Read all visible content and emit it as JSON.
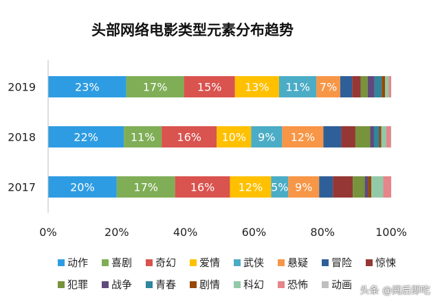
{
  "watermark": "头条 @阅后即吃",
  "chart_data": {
    "type": "bar",
    "orientation": "horizontal",
    "stacked": true,
    "title": "头部网络电影类型元素分布趋势",
    "categories": [
      "2019",
      "2018",
      "2017"
    ],
    "xlim": [
      0,
      100
    ],
    "xticks": [
      "0%",
      "20%",
      "40%",
      "60%",
      "80%",
      "100%"
    ],
    "legend_position": "bottom",
    "series": [
      {
        "name": "动作",
        "color": "#2E9CE2",
        "values": [
          23,
          22,
          20
        ],
        "labels": [
          "23%",
          "22%",
          "20%"
        ]
      },
      {
        "name": "喜剧",
        "color": "#7FAE56",
        "values": [
          17,
          11,
          17
        ],
        "labels": [
          "17%",
          "11%",
          "17%"
        ]
      },
      {
        "name": "奇幻",
        "color": "#D9534F",
        "values": [
          15,
          16,
          16
        ],
        "labels": [
          "15%",
          "16%",
          "16%"
        ]
      },
      {
        "name": "爱情",
        "color": "#FFC000",
        "values": [
          13,
          10,
          12
        ],
        "labels": [
          "13%",
          "10%",
          "12%"
        ]
      },
      {
        "name": "武侠",
        "color": "#4BACC6",
        "values": [
          11,
          9,
          5
        ],
        "labels": [
          "11%",
          "9%",
          "5%"
        ]
      },
      {
        "name": "悬疑",
        "color": "#F79646",
        "values": [
          7,
          12,
          9
        ],
        "labels": [
          "7%",
          "12%",
          "9%"
        ]
      },
      {
        "name": "冒险",
        "color": "#2F5F98",
        "values": [
          3.5,
          5.2,
          4
        ]
      },
      {
        "name": "惊悚",
        "color": "#953735",
        "values": [
          2.5,
          4.1,
          5.8
        ]
      },
      {
        "name": "犯罪",
        "color": "#77933C",
        "values": [
          2.1,
          4.3,
          3.5
        ]
      },
      {
        "name": "战争",
        "color": "#604A7B",
        "values": [
          2,
          1.1,
          1
        ]
      },
      {
        "name": "青春",
        "color": "#31859C",
        "values": [
          2.1,
          1.5,
          0
        ]
      },
      {
        "name": "剧情",
        "color": "#974806",
        "values": [
          1,
          0.6,
          0.9
        ]
      },
      {
        "name": "科幻",
        "color": "#93C9A8",
        "values": [
          1.1,
          1.5,
          3.5
        ]
      },
      {
        "name": "恐怖",
        "color": "#E6858A",
        "values": [
          0.7,
          1.3,
          2.3
        ]
      },
      {
        "name": "动画",
        "color": "#BFBFBF",
        "values": [
          0,
          0.1,
          0
        ]
      }
    ]
  }
}
